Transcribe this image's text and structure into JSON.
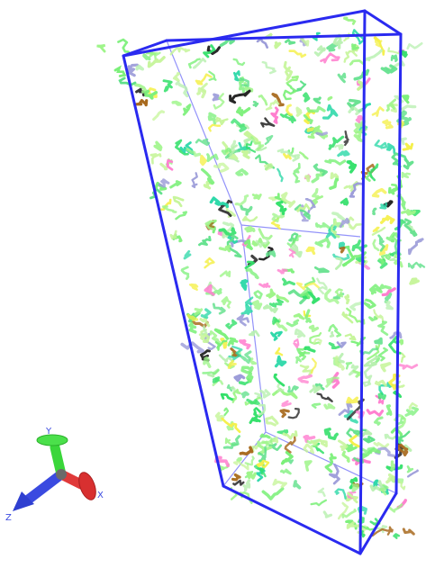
{
  "scene": {
    "background": "#ffffff",
    "box_color": "#2a2af0",
    "chain_palette": [
      "#7cf07a",
      "#9ff58a",
      "#c6f59a",
      "#33e06a",
      "#2bd8a8",
      "#f5f04a",
      "#ff7fcf",
      "#9a9ad8",
      "#a86a1e",
      "#1e1e1e",
      "#b8f0b0",
      "#5fe08a"
    ]
  },
  "axes_triad": {
    "x": {
      "label": "X",
      "color": "#e03a3a"
    },
    "y": {
      "label": "Y",
      "color": "#3ad63a"
    },
    "z": {
      "label": "Z",
      "color": "#3a4ae0"
    }
  }
}
